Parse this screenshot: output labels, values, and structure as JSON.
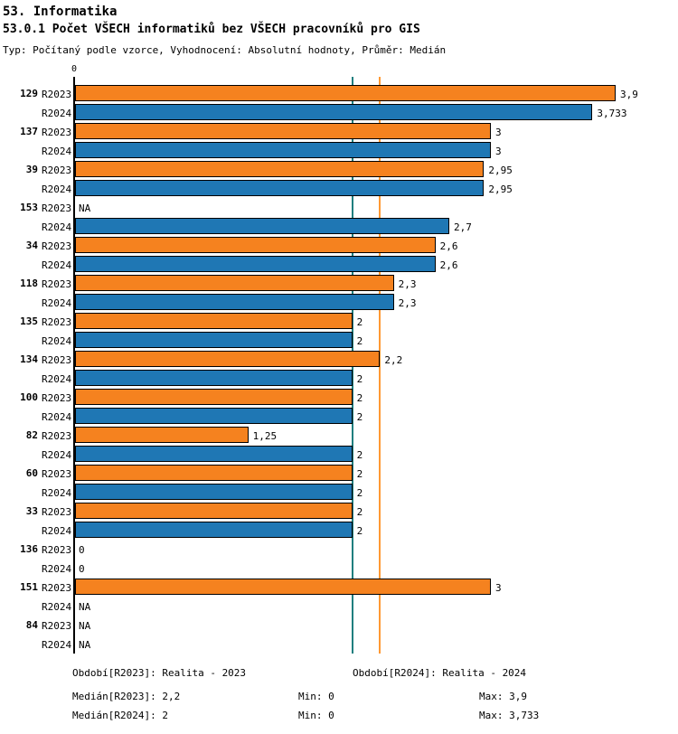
{
  "chart_data": {
    "type": "bar",
    "orientation": "horizontal",
    "title": "53. Informatika",
    "subtitle": "53.0.1 Počet VŠECH informatiků bez VŠECH pracovníků pro GIS",
    "meta": "Typ: Počítaný podle vzorce, Vyhodnocení: Absolutní hodnoty, Průměr: Medián",
    "axis_origin_label": "0",
    "xlim": [
      0,
      3.9
    ],
    "series": [
      "R2023",
      "R2024"
    ],
    "series_colors": {
      "R2023": "#F5821F",
      "R2024": "#1F77B4"
    },
    "reference_lines": [
      {
        "name": "median-r2024",
        "value": 2,
        "color": "#1F7F7F"
      },
      {
        "name": "median-r2023",
        "value": 2.2,
        "color": "#FF9933"
      }
    ],
    "groups": [
      {
        "id": "129",
        "bars": [
          {
            "series": "R2023",
            "value": 3.9,
            "label": "3,9"
          },
          {
            "series": "R2024",
            "value": 3.733,
            "label": "3,733"
          }
        ]
      },
      {
        "id": "137",
        "bars": [
          {
            "series": "R2023",
            "value": 3,
            "label": "3"
          },
          {
            "series": "R2024",
            "value": 3,
            "label": "3"
          }
        ]
      },
      {
        "id": "39",
        "bars": [
          {
            "series": "R2023",
            "value": 2.95,
            "label": "2,95"
          },
          {
            "series": "R2024",
            "value": 2.95,
            "label": "2,95"
          }
        ]
      },
      {
        "id": "153",
        "bars": [
          {
            "series": "R2023",
            "value": null,
            "label": "NA"
          },
          {
            "series": "R2024",
            "value": 2.7,
            "label": "2,7"
          }
        ]
      },
      {
        "id": "34",
        "bars": [
          {
            "series": "R2023",
            "value": 2.6,
            "label": "2,6"
          },
          {
            "series": "R2024",
            "value": 2.6,
            "label": "2,6"
          }
        ]
      },
      {
        "id": "118",
        "bars": [
          {
            "series": "R2023",
            "value": 2.3,
            "label": "2,3"
          },
          {
            "series": "R2024",
            "value": 2.3,
            "label": "2,3"
          }
        ]
      },
      {
        "id": "135",
        "bars": [
          {
            "series": "R2023",
            "value": 2,
            "label": "2"
          },
          {
            "series": "R2024",
            "value": 2,
            "label": "2"
          }
        ]
      },
      {
        "id": "134",
        "bars": [
          {
            "series": "R2023",
            "value": 2.2,
            "label": "2,2"
          },
          {
            "series": "R2024",
            "value": 2,
            "label": "2"
          }
        ]
      },
      {
        "id": "100",
        "bars": [
          {
            "series": "R2023",
            "value": 2,
            "label": "2"
          },
          {
            "series": "R2024",
            "value": 2,
            "label": "2"
          }
        ]
      },
      {
        "id": "82",
        "bars": [
          {
            "series": "R2023",
            "value": 1.25,
            "label": "1,25"
          },
          {
            "series": "R2024",
            "value": 2,
            "label": "2"
          }
        ]
      },
      {
        "id": "60",
        "bars": [
          {
            "series": "R2023",
            "value": 2,
            "label": "2"
          },
          {
            "series": "R2024",
            "value": 2,
            "label": "2"
          }
        ]
      },
      {
        "id": "33",
        "bars": [
          {
            "series": "R2023",
            "value": 2,
            "label": "2"
          },
          {
            "series": "R2024",
            "value": 2,
            "label": "2"
          }
        ]
      },
      {
        "id": "136",
        "bars": [
          {
            "series": "R2023",
            "value": 0,
            "label": "0"
          },
          {
            "series": "R2024",
            "value": 0,
            "label": "0"
          }
        ]
      },
      {
        "id": "151",
        "bars": [
          {
            "series": "R2023",
            "value": 3,
            "label": "3"
          },
          {
            "series": "R2024",
            "value": null,
            "label": "NA"
          }
        ]
      },
      {
        "id": "84",
        "bars": [
          {
            "series": "R2023",
            "value": null,
            "label": "NA"
          },
          {
            "series": "R2024",
            "value": null,
            "label": "NA"
          }
        ]
      }
    ]
  },
  "footer": {
    "period_2023": "Období[R2023]: Realita - 2023",
    "period_2024": "Období[R2024]: Realita - 2024",
    "median_2023": "Medián[R2023]: 2,2",
    "min_2023": "Min: 0",
    "max_2023": "Max: 3,9",
    "median_2024": "Medián[R2024]: 2",
    "min_2024": "Min: 0",
    "max_2024": "Max: 3,733"
  }
}
